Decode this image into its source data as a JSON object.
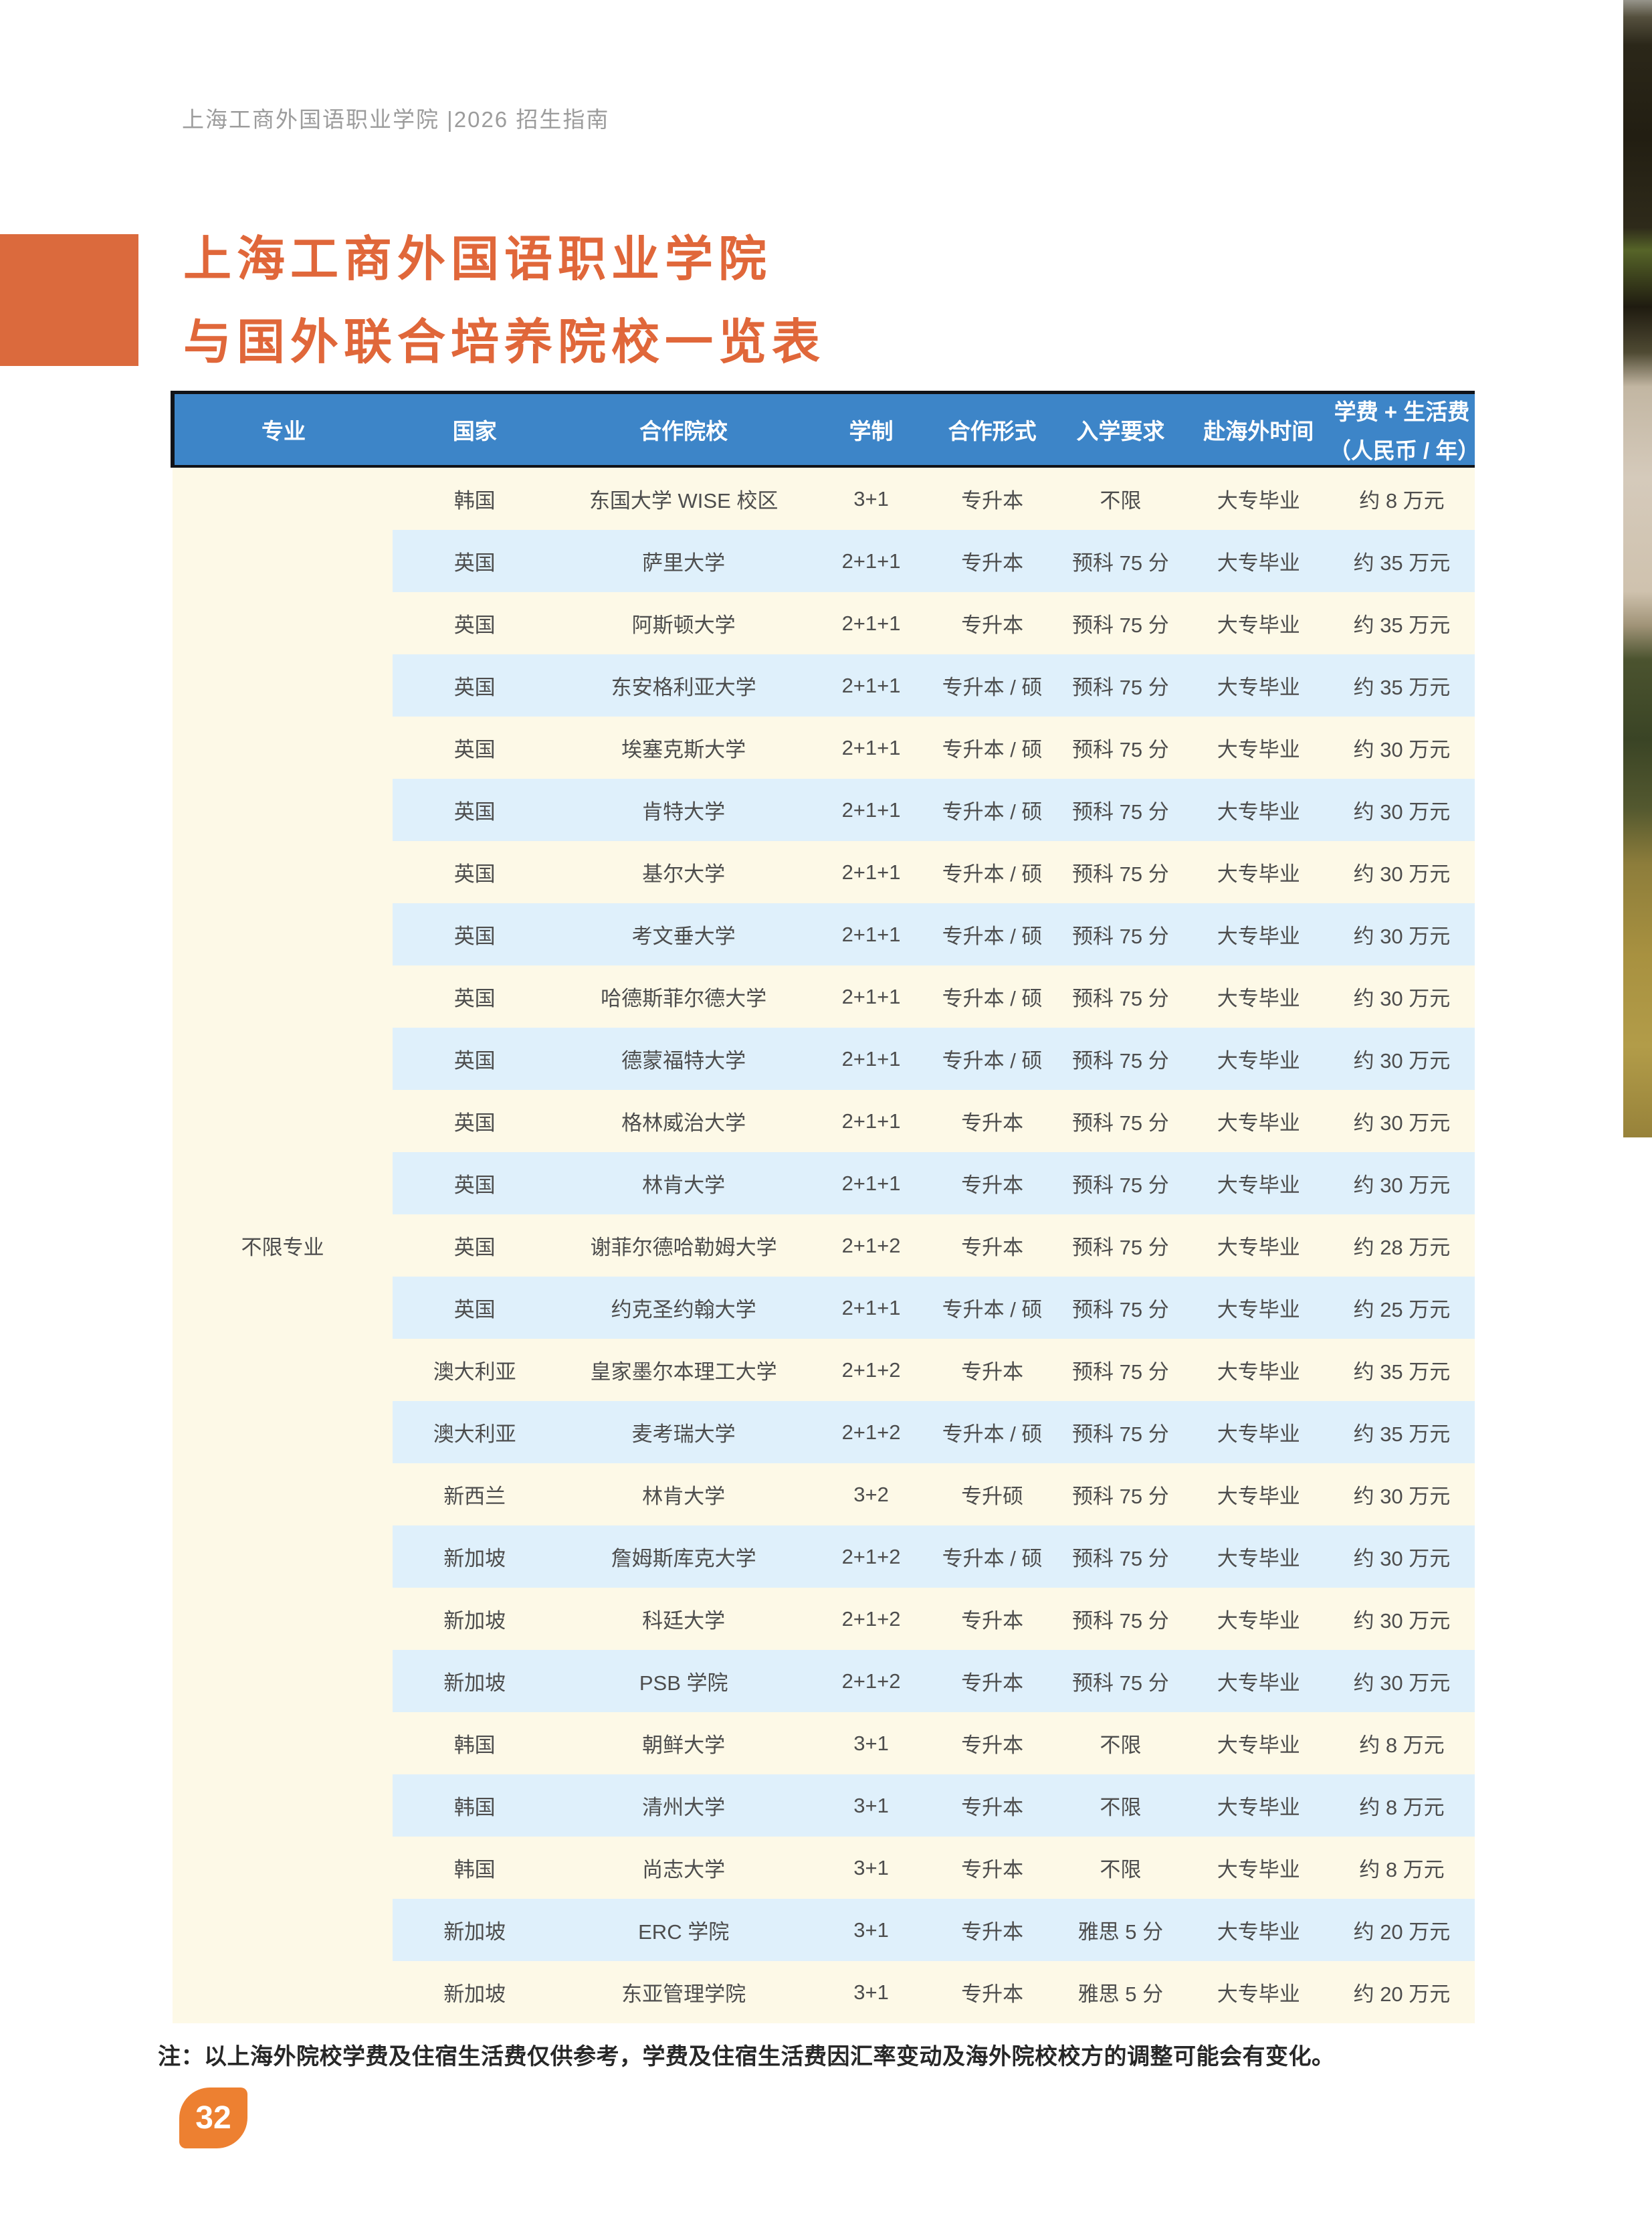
{
  "page": {
    "breadcrumb": "上海工商外国语职业学院 |2026 招生指南",
    "title_line1": "上海工商外国语职业学院",
    "title_line2": "与国外联合培养院校一览表",
    "note": "注：以上海外院校学费及住宿生活费仅供参考，学费及住宿生活费因汇率变动及海外院校校方的调整可能会有变化。",
    "page_number": "32"
  },
  "colors": {
    "accent_orange": "#DB6A3D",
    "title_orange": "#E0673A",
    "badge_orange": "#ED8031",
    "header_blue": "#3D85C8",
    "row_cream": "#FDF9E7",
    "row_light_blue": "#DFF0FB",
    "cell_text": "#4d4d4d",
    "breadcrumb_gray": "#9c9c9c"
  },
  "table": {
    "major_label": "不限专业",
    "columns": [
      {
        "label": "专业"
      },
      {
        "label": "国家"
      },
      {
        "label": "合作院校"
      },
      {
        "label": "学制"
      },
      {
        "label": "合作形式"
      },
      {
        "label": "入学要求"
      },
      {
        "label": "赴海外时间"
      },
      {
        "label": "学费 + 生活费",
        "sub": "（人民币 / 年）"
      }
    ],
    "rows": [
      {
        "country": "韩国",
        "school": "东国大学 WISE 校区",
        "duration": "3+1",
        "mode": "专升本",
        "requirement": "不限",
        "time": "大专毕业",
        "fee": "约 8 万元"
      },
      {
        "country": "英国",
        "school": "萨里大学",
        "duration": "2+1+1",
        "mode": "专升本",
        "requirement": "预科 75 分",
        "time": "大专毕业",
        "fee": "约 35 万元"
      },
      {
        "country": "英国",
        "school": "阿斯顿大学",
        "duration": "2+1+1",
        "mode": "专升本",
        "requirement": "预科 75 分",
        "time": "大专毕业",
        "fee": "约 35 万元"
      },
      {
        "country": "英国",
        "school": "东安格利亚大学",
        "duration": "2+1+1",
        "mode": "专升本 / 硕",
        "requirement": "预科 75 分",
        "time": "大专毕业",
        "fee": "约 35 万元"
      },
      {
        "country": "英国",
        "school": "埃塞克斯大学",
        "duration": "2+1+1",
        "mode": "专升本 / 硕",
        "requirement": "预科 75 分",
        "time": "大专毕业",
        "fee": "约 30 万元"
      },
      {
        "country": "英国",
        "school": "肯特大学",
        "duration": "2+1+1",
        "mode": "专升本 / 硕",
        "requirement": "预科 75 分",
        "time": "大专毕业",
        "fee": "约 30 万元"
      },
      {
        "country": "英国",
        "school": "基尔大学",
        "duration": "2+1+1",
        "mode": "专升本 / 硕",
        "requirement": "预科 75 分",
        "time": "大专毕业",
        "fee": "约 30 万元"
      },
      {
        "country": "英国",
        "school": "考文垂大学",
        "duration": "2+1+1",
        "mode": "专升本 / 硕",
        "requirement": "预科 75 分",
        "time": "大专毕业",
        "fee": "约 30 万元"
      },
      {
        "country": "英国",
        "school": "哈德斯菲尔德大学",
        "duration": "2+1+1",
        "mode": "专升本 / 硕",
        "requirement": "预科 75 分",
        "time": "大专毕业",
        "fee": "约 30 万元"
      },
      {
        "country": "英国",
        "school": "德蒙福特大学",
        "duration": "2+1+1",
        "mode": "专升本 / 硕",
        "requirement": "预科 75 分",
        "time": "大专毕业",
        "fee": "约 30 万元"
      },
      {
        "country": "英国",
        "school": "格林威治大学",
        "duration": "2+1+1",
        "mode": "专升本",
        "requirement": "预科 75 分",
        "time": "大专毕业",
        "fee": "约 30 万元"
      },
      {
        "country": "英国",
        "school": "林肯大学",
        "duration": "2+1+1",
        "mode": "专升本",
        "requirement": "预科 75 分",
        "time": "大专毕业",
        "fee": "约 30 万元"
      },
      {
        "country": "英国",
        "school": "谢菲尔德哈勒姆大学",
        "duration": "2+1+2",
        "mode": "专升本",
        "requirement": "预科 75 分",
        "time": "大专毕业",
        "fee": "约 28 万元"
      },
      {
        "country": "英国",
        "school": "约克圣约翰大学",
        "duration": "2+1+1",
        "mode": "专升本 / 硕",
        "requirement": "预科 75 分",
        "time": "大专毕业",
        "fee": "约 25 万元"
      },
      {
        "country": "澳大利亚",
        "school": "皇家墨尔本理工大学",
        "duration": "2+1+2",
        "mode": "专升本",
        "requirement": "预科 75 分",
        "time": "大专毕业",
        "fee": "约 35 万元"
      },
      {
        "country": "澳大利亚",
        "school": "麦考瑞大学",
        "duration": "2+1+2",
        "mode": "专升本 / 硕",
        "requirement": "预科 75 分",
        "time": "大专毕业",
        "fee": "约 35 万元"
      },
      {
        "country": "新西兰",
        "school": "林肯大学",
        "duration": "3+2",
        "mode": "专升硕",
        "requirement": "预科 75 分",
        "time": "大专毕业",
        "fee": "约 30 万元"
      },
      {
        "country": "新加坡",
        "school": "詹姆斯库克大学",
        "duration": "2+1+2",
        "mode": "专升本 / 硕",
        "requirement": "预科 75 分",
        "time": "大专毕业",
        "fee": "约 30 万元"
      },
      {
        "country": "新加坡",
        "school": "科廷大学",
        "duration": "2+1+2",
        "mode": "专升本",
        "requirement": "预科 75 分",
        "time": "大专毕业",
        "fee": "约 30 万元"
      },
      {
        "country": "新加坡",
        "school": "PSB 学院",
        "duration": "2+1+2",
        "mode": "专升本",
        "requirement": "预科 75 分",
        "time": "大专毕业",
        "fee": "约 30 万元"
      },
      {
        "country": "韩国",
        "school": "朝鲜大学",
        "duration": "3+1",
        "mode": "专升本",
        "requirement": "不限",
        "time": "大专毕业",
        "fee": "约 8 万元"
      },
      {
        "country": "韩国",
        "school": "清州大学",
        "duration": "3+1",
        "mode": "专升本",
        "requirement": "不限",
        "time": "大专毕业",
        "fee": "约 8 万元"
      },
      {
        "country": "韩国",
        "school": "尚志大学",
        "duration": "3+1",
        "mode": "专升本",
        "requirement": "不限",
        "time": "大专毕业",
        "fee": "约 8 万元"
      },
      {
        "country": "新加坡",
        "school": "ERC 学院",
        "duration": "3+1",
        "mode": "专升本",
        "requirement": "雅思 5 分",
        "time": "大专毕业",
        "fee": "约 20 万元"
      },
      {
        "country": "新加坡",
        "school": "东亚管理学院",
        "duration": "3+1",
        "mode": "专升本",
        "requirement": "雅思 5 分",
        "time": "大专毕业",
        "fee": "约 20 万元"
      }
    ]
  }
}
